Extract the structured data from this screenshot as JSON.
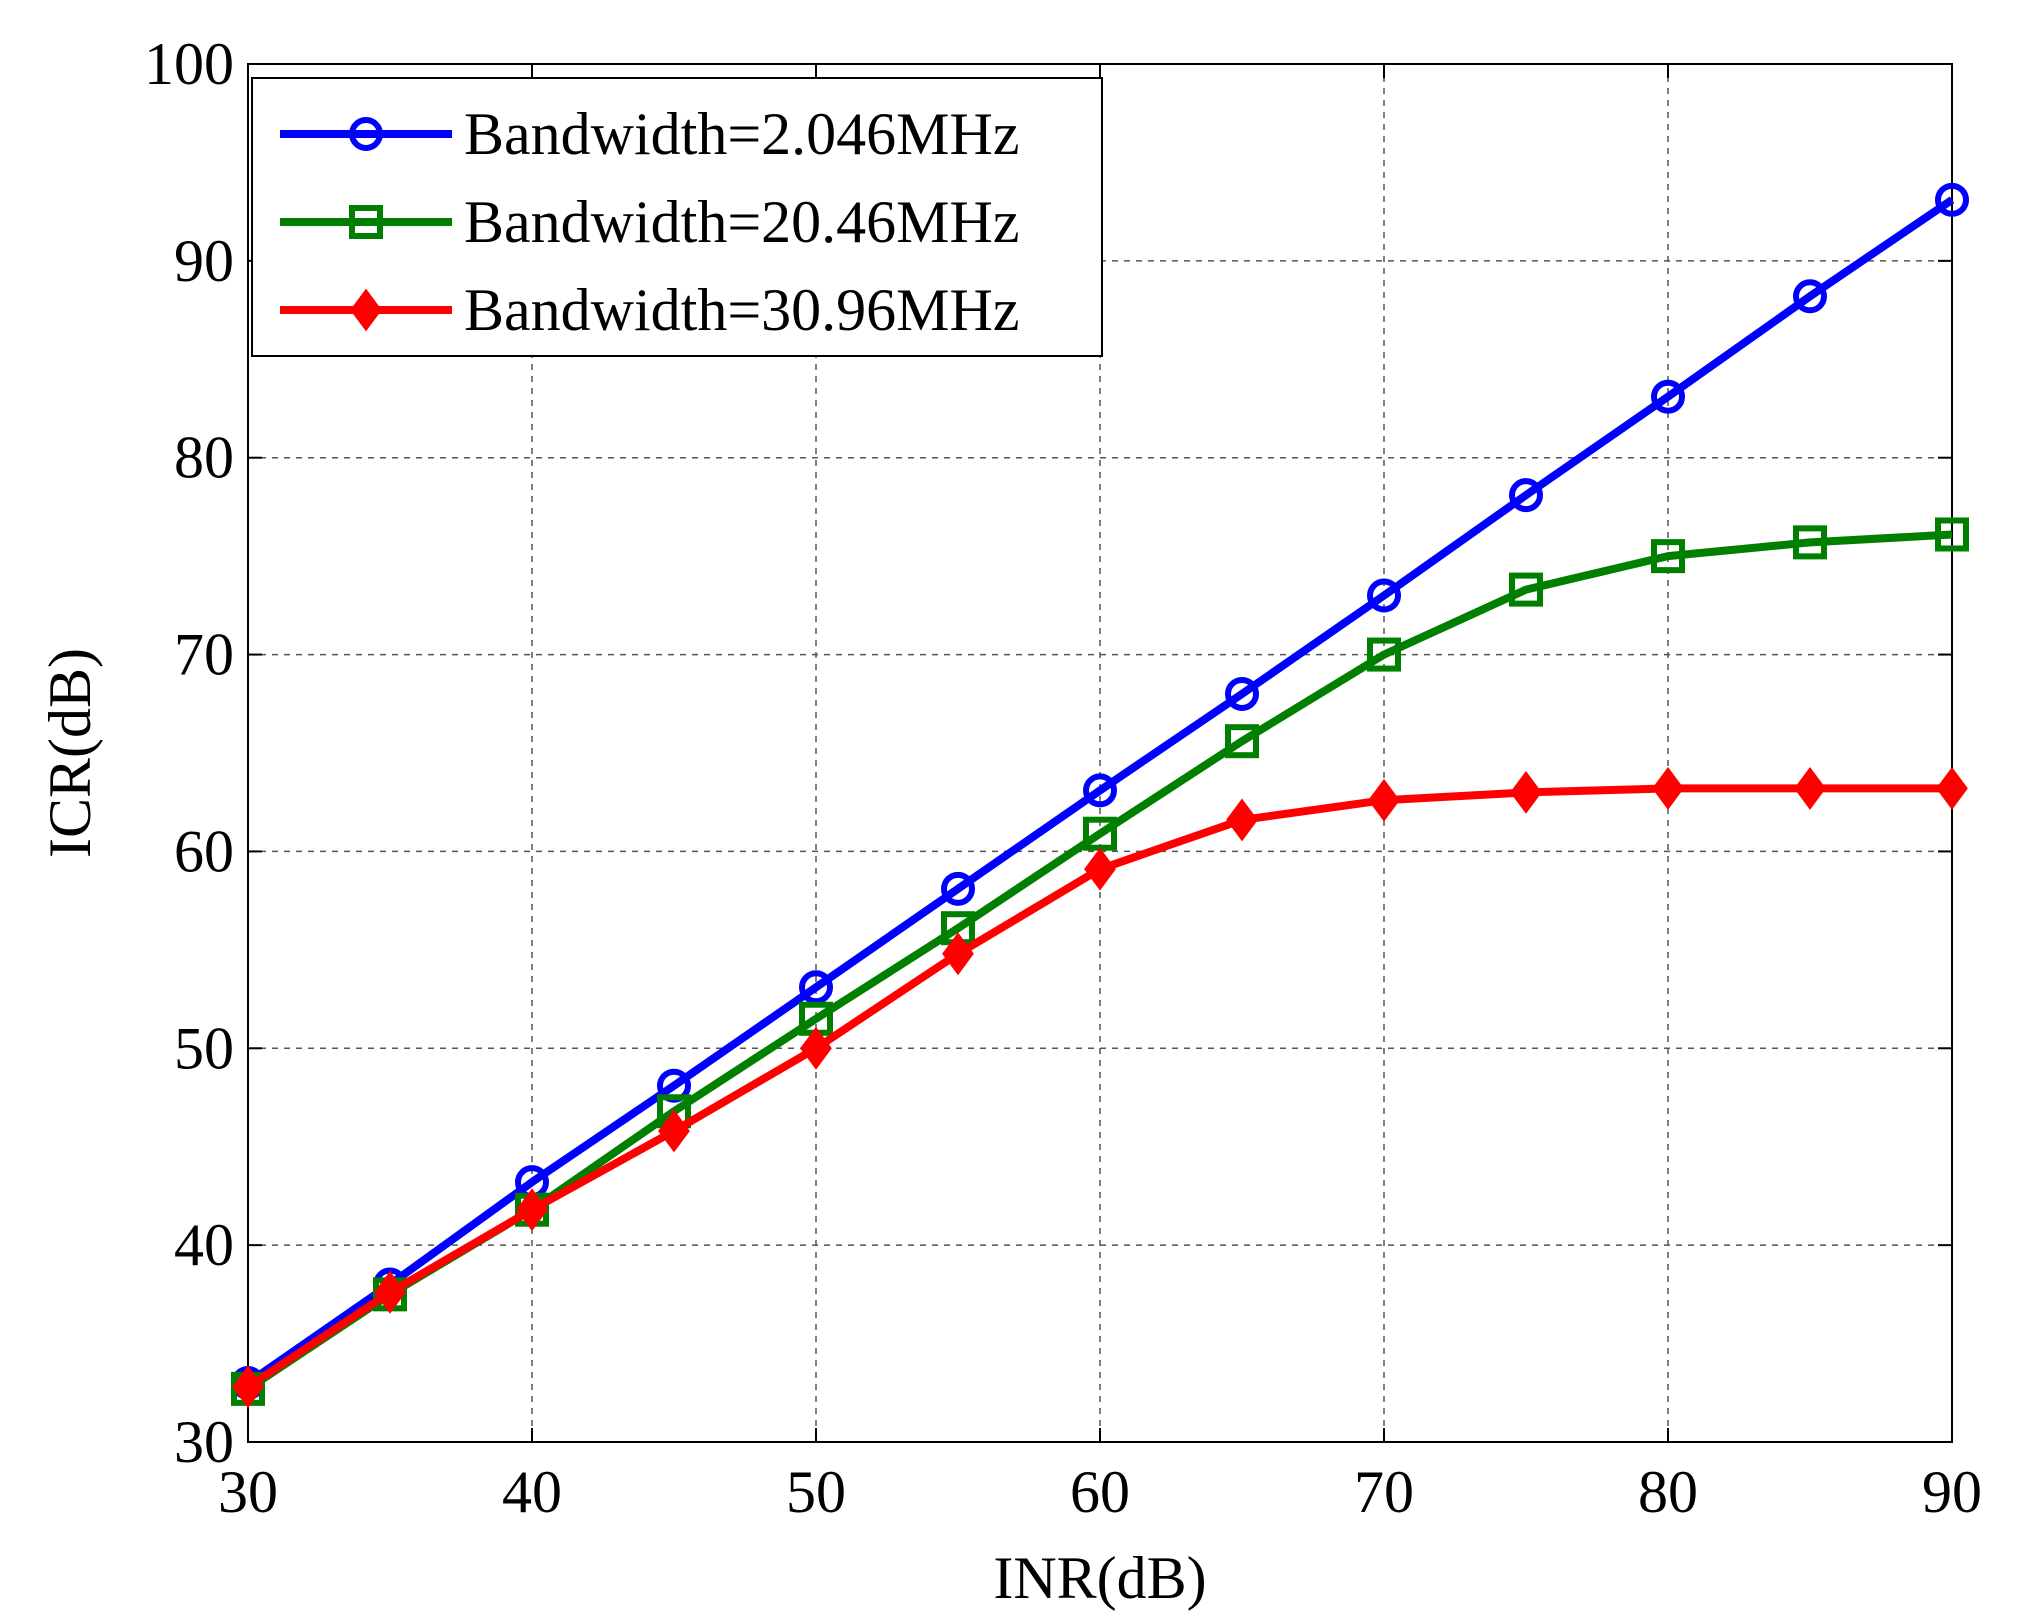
{
  "chart_data": {
    "type": "line",
    "xlabel": "INR(dB)",
    "ylabel": "ICR(dB)",
    "xlim": [
      30,
      90
    ],
    "ylim": [
      30,
      100
    ],
    "xticks": [
      "30",
      "40",
      "50",
      "60",
      "70",
      "80",
      "90"
    ],
    "yticks": [
      "30",
      "40",
      "50",
      "60",
      "70",
      "80",
      "90",
      "100"
    ],
    "grid": true,
    "legend_position": "top-left",
    "x": [
      30,
      35,
      40,
      45,
      50,
      55,
      60,
      65,
      70,
      75,
      80,
      85,
      90
    ],
    "series": [
      {
        "name": "Bandwidth=2.046MHz",
        "color": "#0000ff",
        "marker": "circle",
        "values": [
          33.0,
          38.0,
          43.2,
          48.1,
          53.1,
          58.1,
          63.1,
          68.0,
          73.0,
          78.1,
          83.1,
          88.2,
          93.1
        ]
      },
      {
        "name": "Bandwidth=20.46MHz",
        "color": "#007f00",
        "marker": "square",
        "values": [
          32.7,
          37.5,
          41.8,
          46.8,
          51.5,
          56.1,
          60.9,
          65.6,
          70.0,
          73.3,
          75.0,
          75.7,
          76.1
        ]
      },
      {
        "name": "Bandwidth=30.96MHz",
        "color": "#ff0000",
        "marker": "diamond",
        "values": [
          32.8,
          37.6,
          41.8,
          45.8,
          50.0,
          54.8,
          59.1,
          61.6,
          62.6,
          63.0,
          63.2,
          63.2,
          63.2
        ]
      }
    ]
  }
}
